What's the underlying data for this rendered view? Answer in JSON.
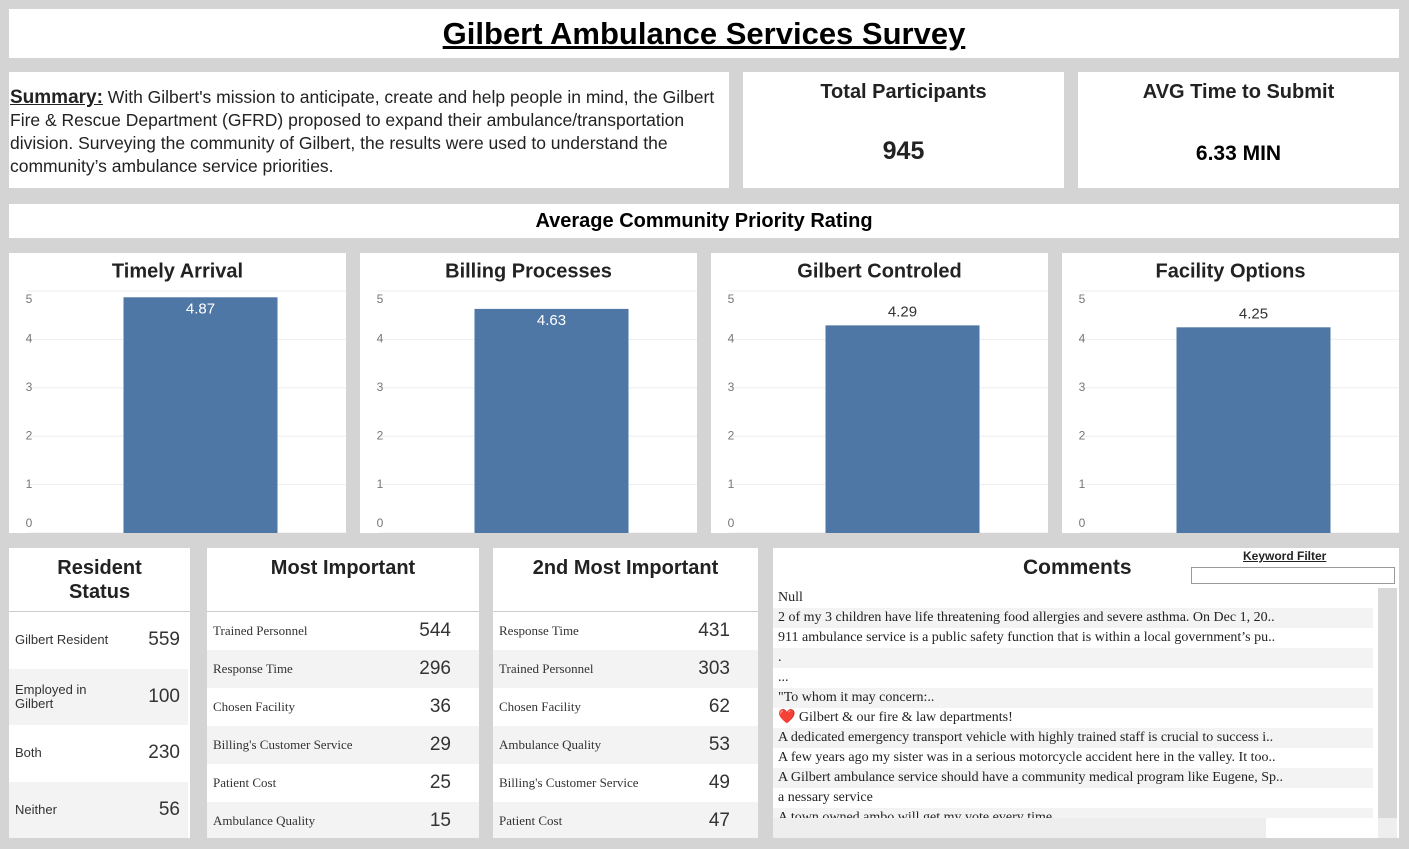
{
  "header": {
    "title": "Gilbert Ambulance Services Survey"
  },
  "summary": {
    "label": "Summary:",
    "text": "With Gilbert's mission to anticipate, create and help people in mind, the Gilbert Fire & Rescue Department (GFRD) proposed to expand their ambulance/transportation division. Surveying the community of Gilbert, the results were used to understand the community’s ambulance service priorities."
  },
  "kpis": [
    {
      "title": "Total Participants",
      "value": "945"
    },
    {
      "title": "AVG Time to Submit",
      "value": "6.33 MIN"
    }
  ],
  "section_title": "Average Community Priority Rating",
  "chart_data": [
    {
      "type": "bar",
      "title": "Timely Arrival",
      "categories": [
        null
      ],
      "values": [
        4.87
      ],
      "color": "#4e77a5",
      "ylim": [
        0,
        5
      ],
      "yticks": [
        0,
        1,
        2,
        3,
        4,
        5
      ],
      "grid": true
    },
    {
      "type": "bar",
      "title": "Billing Processes",
      "categories": [
        null
      ],
      "values": [
        4.63
      ],
      "color": "#4e77a5",
      "ylim": [
        0,
        5
      ],
      "yticks": [
        0,
        1,
        2,
        3,
        4,
        5
      ],
      "grid": true
    },
    {
      "type": "bar",
      "title": "Gilbert Controled",
      "categories": [
        null
      ],
      "values": [
        4.29
      ],
      "color": "#4e77a5",
      "ylim": [
        0,
        5
      ],
      "yticks": [
        0,
        1,
        2,
        3,
        4,
        5
      ],
      "grid": true
    },
    {
      "type": "bar",
      "title": "Facility Options",
      "categories": [
        null
      ],
      "values": [
        4.25
      ],
      "color": "#4e77a5",
      "ylim": [
        0,
        5
      ],
      "yticks": [
        0,
        1,
        2,
        3,
        4,
        5
      ],
      "grid": true
    }
  ],
  "tables": [
    {
      "title": "Resident Status",
      "rows": [
        [
          "Gilbert Resident",
          559
        ],
        [
          "Employed in Gilbert",
          100
        ],
        [
          "Both",
          230
        ],
        [
          "Neither",
          56
        ]
      ]
    },
    {
      "title": "Most Important",
      "rows": [
        [
          "Trained Personnel",
          544
        ],
        [
          "Response Time",
          296
        ],
        [
          "Chosen Facility",
          36
        ],
        [
          "Billing's Customer Service",
          29
        ],
        [
          "Patient Cost",
          25
        ],
        [
          "Ambulance Quality",
          15
        ]
      ]
    },
    {
      "title": "2nd Most Important",
      "rows": [
        [
          "Response Time",
          431
        ],
        [
          "Trained Personnel",
          303
        ],
        [
          "Chosen Facility",
          62
        ],
        [
          "Ambulance Quality",
          53
        ],
        [
          "Billing's Customer Service",
          49
        ],
        [
          "Patient Cost",
          47
        ]
      ]
    }
  ],
  "comments": {
    "title": "Comments",
    "filter_label": "Keyword Filter",
    "items": [
      "Null",
      "2 of my 3 children have life threatening food allergies and severe asthma. On Dec 1, 20..",
      "911 ambulance service is a public safety function that is within a local government’s pu..",
      ".",
      "...",
      "\"To whom it may concern:..",
      "❤️ Gilbert & our fire & law departments!",
      "A dedicated emergency transport vehicle with highly trained staff is crucial to success i..",
      "A few years ago my sister was in a serious motorcycle accident here in the valley. It too..",
      "A Gilbert ambulance service should have a community medical program like Eugene, Sp..",
      "a nessary service",
      "A town owned ambo will get my vote every time"
    ]
  }
}
